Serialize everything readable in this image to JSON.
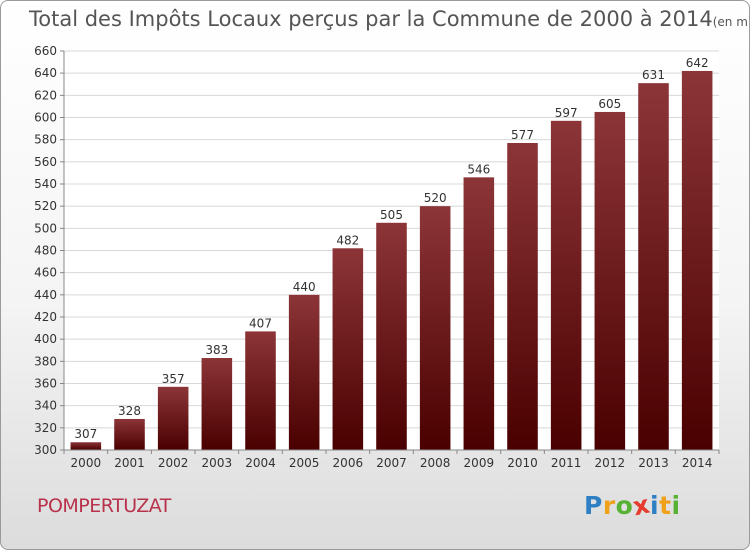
{
  "title": "Total des Impôts Locaux perçus par la Commune de 2000 à 2014",
  "title_unit": "(en milliers d'€)",
  "commune": "POMPERTUZAT",
  "logo": {
    "text": "Proxiti",
    "letters": [
      {
        "ch": "P",
        "color": "#2e7fc4"
      },
      {
        "ch": "r",
        "color": "#f0a11c"
      },
      {
        "ch": "o",
        "color": "#57b233"
      },
      {
        "ch": "x",
        "color": "#e63c2f"
      },
      {
        "ch": "i",
        "color": "#2e7fc4"
      },
      {
        "ch": "t",
        "color": "#f0a11c"
      },
      {
        "ch": "i",
        "color": "#57b233"
      }
    ]
  },
  "chart_data": {
    "type": "bar",
    "title": "Total des Impôts Locaux perçus par la Commune de 2000 à 2014",
    "unit": "en milliers d'€",
    "xlabel": "",
    "ylabel": "",
    "categories": [
      "2000",
      "2001",
      "2002",
      "2003",
      "2004",
      "2005",
      "2006",
      "2007",
      "2008",
      "2009",
      "2010",
      "2011",
      "2012",
      "2013",
      "2014"
    ],
    "values": [
      307,
      328,
      357,
      383,
      407,
      440,
      482,
      505,
      520,
      546,
      577,
      597,
      605,
      631,
      642
    ],
    "ylim": [
      300,
      660
    ],
    "ytick_step": 20,
    "grid": true,
    "bar_color_top": "#8c3538",
    "bar_color_bottom": "#4a0000"
  }
}
